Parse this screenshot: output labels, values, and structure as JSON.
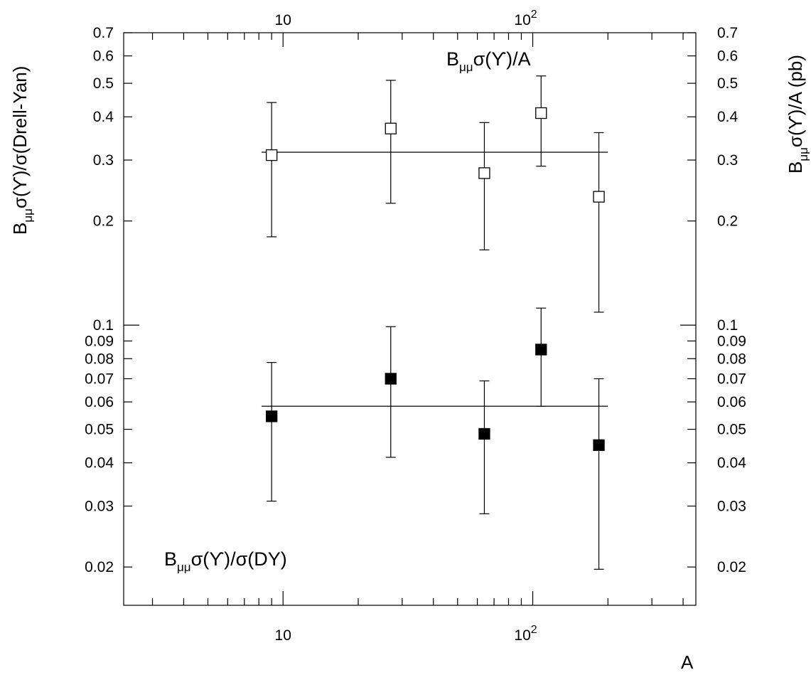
{
  "chart_data": {
    "type": "scatter",
    "x_scale": "log",
    "y_scale": "log",
    "xlabel": "A",
    "ylabel_left": {
      "prefix": "B",
      "sub": "μμ",
      "text": "σ(ϒ)/σ(Drell-Yan)"
    },
    "ylabel_right": {
      "prefix": "B",
      "sub": "μμ",
      "text": "σ(ϒ)/A (pb)"
    },
    "xlim": [
      2.3,
      450
    ],
    "ylim": [
      0.0155,
      0.7
    ],
    "x_ticks": [
      {
        "value": 10,
        "label": "10"
      },
      {
        "value": 100,
        "base": "10",
        "exp": "2"
      }
    ],
    "y_ticks": [
      {
        "value": 0.02,
        "label": "0.02"
      },
      {
        "value": 0.03,
        "label": "0.03"
      },
      {
        "value": 0.04,
        "label": "0.04"
      },
      {
        "value": 0.05,
        "label": "0.05"
      },
      {
        "value": 0.06,
        "label": "0.06"
      },
      {
        "value": 0.07,
        "label": "0.07"
      },
      {
        "value": 0.08,
        "label": "0.08"
      },
      {
        "value": 0.09,
        "label": "0.09"
      },
      {
        "value": 0.1,
        "label": "0.1"
      },
      {
        "value": 0.2,
        "label": "0.2"
      },
      {
        "value": 0.3,
        "label": "0.3"
      },
      {
        "value": 0.4,
        "label": "0.4"
      },
      {
        "value": 0.5,
        "label": "0.5"
      },
      {
        "value": 0.6,
        "label": "0.6"
      },
      {
        "value": 0.7,
        "label": "0.7"
      }
    ],
    "series": [
      {
        "name": {
          "prefix": "B",
          "sub": "μμ",
          "text": "σ(ϒ)/A"
        },
        "marker": "open-square",
        "fit_value": 0.316,
        "fit_range": [
          8.2,
          200
        ],
        "points": [
          {
            "x": 9,
            "y": 0.31,
            "ylow": 0.18,
            "yhigh": 0.44
          },
          {
            "x": 27,
            "y": 0.37,
            "ylow": 0.225,
            "yhigh": 0.51
          },
          {
            "x": 64,
            "y": 0.275,
            "ylow": 0.165,
            "yhigh": 0.385
          },
          {
            "x": 108,
            "y": 0.41,
            "ylow": 0.288,
            "yhigh": 0.525
          },
          {
            "x": 184,
            "y": 0.235,
            "ylow": 0.109,
            "yhigh": 0.36
          }
        ]
      },
      {
        "name": {
          "prefix": "B",
          "sub": "μμ",
          "text": "σ(ϒ)/σ(DY)"
        },
        "marker": "filled-square",
        "fit_value": 0.0583,
        "fit_range": [
          8.2,
          200
        ],
        "points": [
          {
            "x": 9,
            "y": 0.0545,
            "ylow": 0.031,
            "yhigh": 0.078
          },
          {
            "x": 27,
            "y": 0.07,
            "ylow": 0.0415,
            "yhigh": 0.099
          },
          {
            "x": 64,
            "y": 0.0485,
            "ylow": 0.0285,
            "yhigh": 0.069
          },
          {
            "x": 108,
            "y": 0.085,
            "ylow": 0.0583,
            "yhigh": 0.112
          },
          {
            "x": 184,
            "y": 0.045,
            "ylow": 0.0197,
            "yhigh": 0.07
          }
        ]
      }
    ]
  }
}
